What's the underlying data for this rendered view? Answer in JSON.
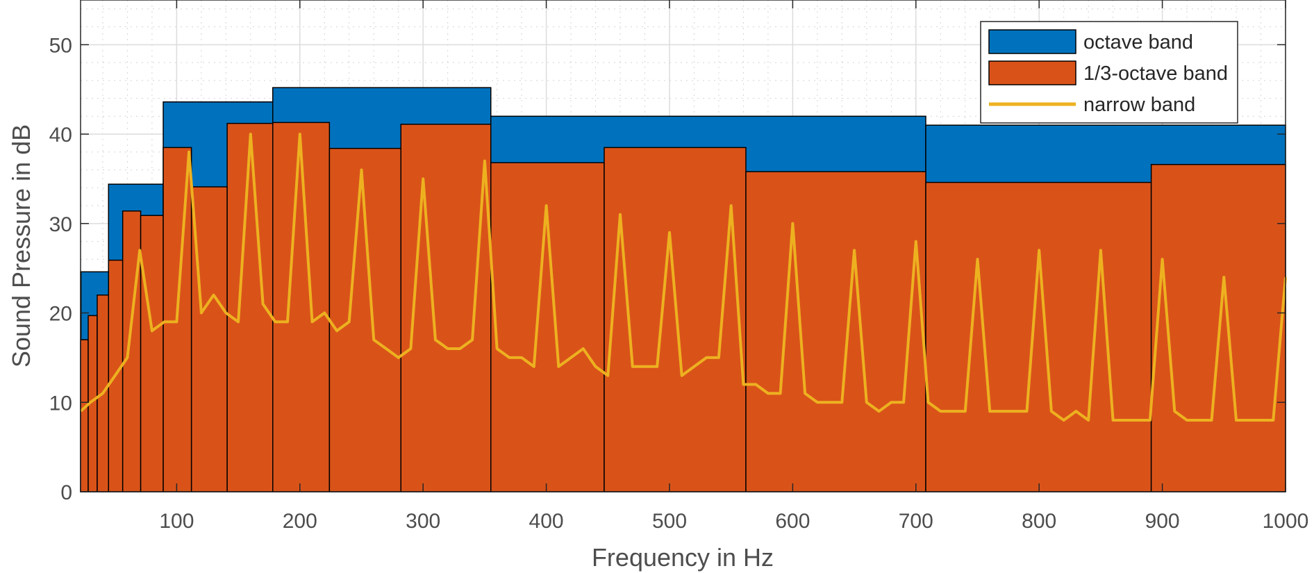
{
  "chart_data": {
    "type": "bar",
    "title": "",
    "xlabel": "Frequency in Hz",
    "ylabel": "Sound Pressure in dB",
    "xlim": [
      22,
      1000
    ],
    "ylim": [
      0,
      55
    ],
    "x_ticks": [
      100,
      200,
      300,
      400,
      500,
      600,
      700,
      800,
      900,
      1000
    ],
    "y_ticks": [
      0,
      10,
      20,
      30,
      40,
      50
    ],
    "grid": true,
    "minor_grid": true,
    "legend_position": "top-right",
    "series": [
      {
        "name": "octave band",
        "type": "bar",
        "color": "#0072bd",
        "bands": [
          {
            "lo": 22,
            "hi": 22.4,
            "value": 24.6
          },
          {
            "lo": 22.4,
            "hi": 44.7,
            "value": 24.6
          },
          {
            "lo": 44.7,
            "hi": 89.1,
            "value": 34.4
          },
          {
            "lo": 89.1,
            "hi": 178,
            "value": 43.6
          },
          {
            "lo": 178,
            "hi": 355,
            "value": 45.2
          },
          {
            "lo": 355,
            "hi": 708,
            "value": 42.0
          },
          {
            "lo": 708,
            "hi": 1000,
            "value": 41.0
          }
        ]
      },
      {
        "name": "1/3-octave band",
        "type": "bar",
        "color": "#d95319",
        "bands": [
          {
            "lo": 22,
            "hi": 28.2,
            "value": 17.0
          },
          {
            "lo": 28.2,
            "hi": 35.5,
            "value": 19.7
          },
          {
            "lo": 35.5,
            "hi": 44.7,
            "value": 22.0
          },
          {
            "lo": 44.7,
            "hi": 56.2,
            "value": 25.9
          },
          {
            "lo": 56.2,
            "hi": 70.8,
            "value": 31.4
          },
          {
            "lo": 70.8,
            "hi": 89.1,
            "value": 30.9
          },
          {
            "lo": 89.1,
            "hi": 112,
            "value": 38.5
          },
          {
            "lo": 112,
            "hi": 141,
            "value": 34.1
          },
          {
            "lo": 141,
            "hi": 178,
            "value": 41.2
          },
          {
            "lo": 178,
            "hi": 224,
            "value": 41.3
          },
          {
            "lo": 224,
            "hi": 282,
            "value": 38.4
          },
          {
            "lo": 282,
            "hi": 355,
            "value": 41.1
          },
          {
            "lo": 355,
            "hi": 447,
            "value": 36.8
          },
          {
            "lo": 447,
            "hi": 562,
            "value": 38.5
          },
          {
            "lo": 562,
            "hi": 708,
            "value": 35.8
          },
          {
            "lo": 708,
            "hi": 891,
            "value": 34.6
          },
          {
            "lo": 891,
            "hi": 1000,
            "value": 36.6
          }
        ]
      },
      {
        "name": "narrow band",
        "type": "line",
        "color": "#edb120",
        "x": [
          22,
          30,
          40,
          50,
          60,
          70,
          80,
          90,
          100,
          110,
          120,
          130,
          140,
          150,
          160,
          170,
          180,
          190,
          200,
          210,
          220,
          230,
          240,
          250,
          260,
          270,
          280,
          290,
          300,
          310,
          320,
          330,
          340,
          350,
          360,
          370,
          380,
          390,
          400,
          410,
          420,
          430,
          440,
          450,
          460,
          470,
          480,
          490,
          500,
          510,
          520,
          530,
          540,
          550,
          560,
          570,
          580,
          590,
          600,
          610,
          620,
          630,
          640,
          650,
          660,
          670,
          680,
          690,
          700,
          710,
          720,
          730,
          740,
          750,
          760,
          770,
          780,
          790,
          800,
          810,
          820,
          830,
          840,
          850,
          860,
          870,
          880,
          890,
          900,
          910,
          920,
          930,
          940,
          950,
          960,
          970,
          980,
          990,
          1000
        ],
        "y": [
          9,
          10,
          11,
          13,
          15,
          27,
          18,
          19,
          19,
          38,
          20,
          22,
          20,
          19,
          40,
          21,
          19,
          19,
          40,
          19,
          20,
          18,
          19,
          36,
          17,
          16,
          15,
          16,
          35,
          17,
          16,
          16,
          17,
          37,
          16,
          15,
          15,
          14,
          32,
          14,
          15,
          16,
          14,
          13,
          31,
          14,
          14,
          14,
          29,
          13,
          14,
          15,
          15,
          32,
          12,
          12,
          11,
          11,
          30,
          11,
          10,
          10,
          10,
          27,
          10,
          9,
          10,
          10,
          28,
          10,
          9,
          9,
          9,
          26,
          9,
          9,
          9,
          9,
          27,
          9,
          8,
          9,
          8,
          27,
          8,
          8,
          8,
          8,
          26,
          9,
          8,
          8,
          8,
          24,
          8,
          8,
          8,
          8,
          24
        ]
      }
    ]
  }
}
